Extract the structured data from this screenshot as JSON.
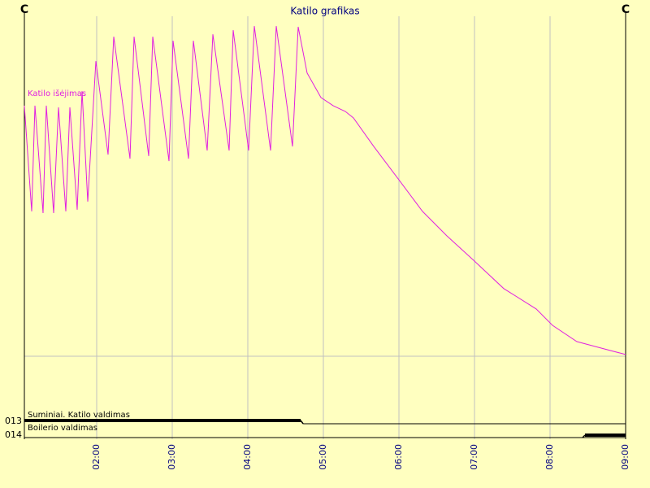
{
  "chart_data": {
    "type": "line",
    "title": "Katilo  grafikas",
    "y_unit_left": "C",
    "y_unit_right": "C",
    "xlim": [
      1.043,
      9.0
    ],
    "xticks": [
      {
        "value": 2,
        "label": "02:00"
      },
      {
        "value": 3,
        "label": "03:00"
      },
      {
        "value": 4,
        "label": "04:00"
      },
      {
        "value": 5,
        "label": "05:00"
      },
      {
        "value": 6,
        "label": "06:00"
      },
      {
        "value": 7,
        "label": "07:00"
      },
      {
        "value": 8,
        "label": "08:00"
      },
      {
        "value": 9,
        "label": "09:00"
      }
    ],
    "ylim": [
      0,
      100
    ],
    "yticks": [
      0
    ],
    "grid": true,
    "legend": "top-left",
    "series": [
      {
        "name": "Katilo išėjimas",
        "color": "#e020e0",
        "x": [
          1.043,
          1.14,
          1.183,
          1.29,
          1.333,
          1.43,
          1.495,
          1.591,
          1.645,
          1.742,
          1.806,
          1.882,
          1.989,
          2.151,
          2.226,
          2.441,
          2.495,
          2.688,
          2.742,
          2.957,
          3.011,
          3.215,
          3.28,
          3.462,
          3.538,
          3.753,
          3.806,
          4.011,
          4.086,
          4.301,
          4.376,
          4.591,
          4.667,
          4.785,
          4.968,
          5.129,
          5.29,
          5.398,
          5.667,
          5.989,
          6.312,
          6.634,
          6.989,
          7.387,
          7.817,
          8.032,
          8.355,
          8.677,
          9.0
        ],
        "values": [
          73.7,
          42.6,
          73.7,
          42.1,
          73.7,
          42.1,
          73.2,
          42.6,
          73.2,
          43.1,
          78.0,
          45.5,
          86.8,
          59.3,
          94.0,
          58.1,
          94.0,
          58.9,
          94.0,
          57.4,
          92.8,
          58.1,
          92.8,
          60.5,
          94.7,
          60.5,
          95.9,
          60.5,
          97.1,
          60.5,
          97.1,
          61.7,
          96.9,
          83.3,
          76.1,
          73.7,
          72.0,
          70.1,
          61.7,
          52.2,
          42.6,
          35.4,
          28.2,
          19.9,
          13.9,
          9.1,
          4.3,
          2.4,
          0.5
        ]
      }
    ],
    "digital_series": [
      {
        "name": "Suminiai. Katilo valdimas",
        "code": "013",
        "color": "#000000",
        "x": [
          1.043,
          4.7
        ],
        "values": [
          1,
          0
        ]
      },
      {
        "name": "Boilerio valdimas",
        "code": "014",
        "color": "#000000",
        "x": [
          1.043,
          8.43
        ],
        "values": [
          0,
          1
        ]
      }
    ]
  }
}
